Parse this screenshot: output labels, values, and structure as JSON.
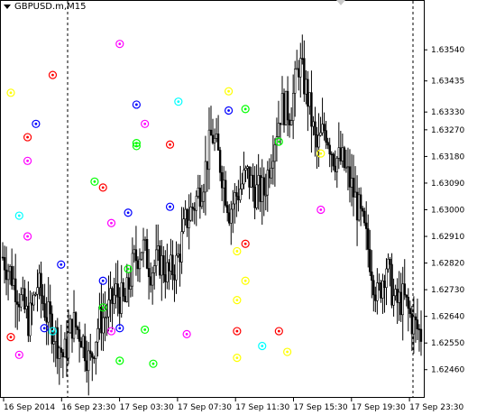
{
  "window": {
    "symbol_title": "GBPUSD.m,M15"
  },
  "price_axis": {
    "min": 1.6238,
    "max": 1.6369,
    "labels": [
      "1.63540",
      "1.63435",
      "1.63330",
      "1.63270",
      "1.63180",
      "1.63090",
      "1.63000",
      "1.62910",
      "1.62820",
      "1.62730",
      "1.62640",
      "1.62550",
      "1.62460"
    ]
  },
  "time_axis": {
    "labels": [
      "16 Sep 2014",
      "16 Sep 23:30",
      "17 Sep 03:30",
      "17 Sep 07:30",
      "17 Sep 11:30",
      "17 Sep 15:30",
      "17 Sep 19:30",
      "17 Sep 23:30"
    ]
  },
  "colors": {
    "bull_bear": "#000000",
    "grid": "#000000",
    "background": "#ffffff"
  },
  "chart_data": {
    "type": "candlestick",
    "symbol": "GBPUSD.m",
    "timeframe": "M15",
    "price_range": [
      1.6238,
      1.6369
    ],
    "x_labels": [
      "16 Sep 2014",
      "16 Sep 23:30",
      "17 Sep 03:30",
      "17 Sep 07:30",
      "17 Sep 11:30",
      "17 Sep 15:30",
      "17 Sep 19:30",
      "17 Sep 23:30"
    ],
    "day_separators_at": [
      "16 Sep 23:30 (approx)",
      "17 Sep 23:30 (approx)"
    ],
    "price_path": [
      1.6284,
      1.6278,
      1.627,
      1.6262,
      1.6275,
      1.6265,
      1.6258,
      1.625,
      1.6262,
      1.6258,
      1.6248,
      1.6262,
      1.6265,
      1.6272,
      1.6268,
      1.6282,
      1.6288,
      1.628,
      1.6283,
      1.6278,
      1.6282,
      1.6296,
      1.6302,
      1.631,
      1.6326,
      1.6315,
      1.63,
      1.6306,
      1.6312,
      1.6306,
      1.6306,
      1.6322,
      1.6335,
      1.6333,
      1.635,
      1.6338,
      1.632,
      1.6328,
      1.6318,
      1.6316,
      1.6308,
      1.6298,
      1.6286,
      1.627,
      1.6282,
      1.6268,
      1.627,
      1.6262,
      1.6258
    ],
    "markers": [
      {
        "color": "#ff00ff",
        "price": 1.6356,
        "index": 13
      },
      {
        "color": "#ffff00",
        "price": 1.63395,
        "index": 0
      },
      {
        "color": "#ff0000",
        "price": 1.63455,
        "index": 5
      },
      {
        "color": "#0000ff",
        "price": 1.6329,
        "index": 3
      },
      {
        "color": "#ff0000",
        "price": 1.63245,
        "index": 2
      },
      {
        "color": "#ff00ff",
        "price": 1.63165,
        "index": 2
      },
      {
        "color": "#0000ff",
        "price": 1.63355,
        "index": 15
      },
      {
        "color": "#ff00ff",
        "price": 1.6329,
        "index": 16
      },
      {
        "color": "#00ffff",
        "price": 1.63365,
        "index": 20
      },
      {
        "color": "#00ff00",
        "price": 1.63225,
        "index": 15
      },
      {
        "color": "#00ff00",
        "price": 1.63215,
        "index": 15
      },
      {
        "color": "#00ff00",
        "price": 1.63095,
        "index": 10
      },
      {
        "color": "#ff0000",
        "price": 1.63075,
        "index": 11
      },
      {
        "color": "#0000ff",
        "price": 1.6299,
        "index": 14
      },
      {
        "color": "#ff00ff",
        "price": 1.62955,
        "index": 12
      },
      {
        "color": "#0000ff",
        "price": 1.6301,
        "index": 19
      },
      {
        "color": "#ff0000",
        "price": 1.6322,
        "index": 19
      },
      {
        "color": "#ffff00",
        "price": 1.634,
        "index": 26
      },
      {
        "color": "#0000ff",
        "price": 1.63335,
        "index": 26
      },
      {
        "color": "#00ff00",
        "price": 1.6334,
        "index": 28
      },
      {
        "color": "#00ff00",
        "price": 1.6323,
        "index": 32
      },
      {
        "color": "#ffff00",
        "price": 1.6319,
        "index": 37
      },
      {
        "color": "#00ffff",
        "price": 1.6298,
        "index": 1
      },
      {
        "color": "#ff00ff",
        "price": 1.6291,
        "index": 2
      },
      {
        "color": "#0000ff",
        "price": 1.62815,
        "index": 6
      },
      {
        "color": "#00ff00",
        "price": 1.628,
        "index": 14
      },
      {
        "color": "#0000ff",
        "price": 1.6276,
        "index": 11
      },
      {
        "color": "#00ff00",
        "price": 1.6267,
        "index": 11
      },
      {
        "color": "#ff00ff",
        "price": 1.6259,
        "index": 12
      },
      {
        "color": "#0000ff",
        "price": 1.626,
        "index": 4
      },
      {
        "color": "#00ffff",
        "price": 1.6259,
        "index": 5
      },
      {
        "color": "#00ff00",
        "price": 1.62595,
        "index": 16
      },
      {
        "color": "#ff00ff",
        "price": 1.6258,
        "index": 21
      },
      {
        "color": "#0000ff",
        "price": 1.626,
        "index": 13
      },
      {
        "color": "#ffff00",
        "price": 1.6286,
        "index": 27
      },
      {
        "color": "#ff0000",
        "price": 1.62885,
        "index": 28
      },
      {
        "color": "#ffff00",
        "price": 1.6276,
        "index": 28
      },
      {
        "color": "#ffff00",
        "price": 1.62695,
        "index": 27
      },
      {
        "color": "#ff0000",
        "price": 1.6259,
        "index": 27
      },
      {
        "color": "#ff0000",
        "price": 1.6259,
        "index": 32
      },
      {
        "color": "#ffff00",
        "price": 1.625,
        "index": 27
      },
      {
        "color": "#00ffff",
        "price": 1.6254,
        "index": 30
      },
      {
        "color": "#ffff00",
        "price": 1.6252,
        "index": 33
      },
      {
        "color": "#ff00ff",
        "price": 1.6251,
        "index": 1
      },
      {
        "color": "#00ff00",
        "price": 1.6248,
        "index": 17
      },
      {
        "color": "#00ff00",
        "price": 1.6249,
        "index": 13
      },
      {
        "color": "#ff0000",
        "price": 1.6257,
        "index": 0
      },
      {
        "color": "#ff00ff",
        "price": 1.63,
        "index": 37
      }
    ]
  }
}
